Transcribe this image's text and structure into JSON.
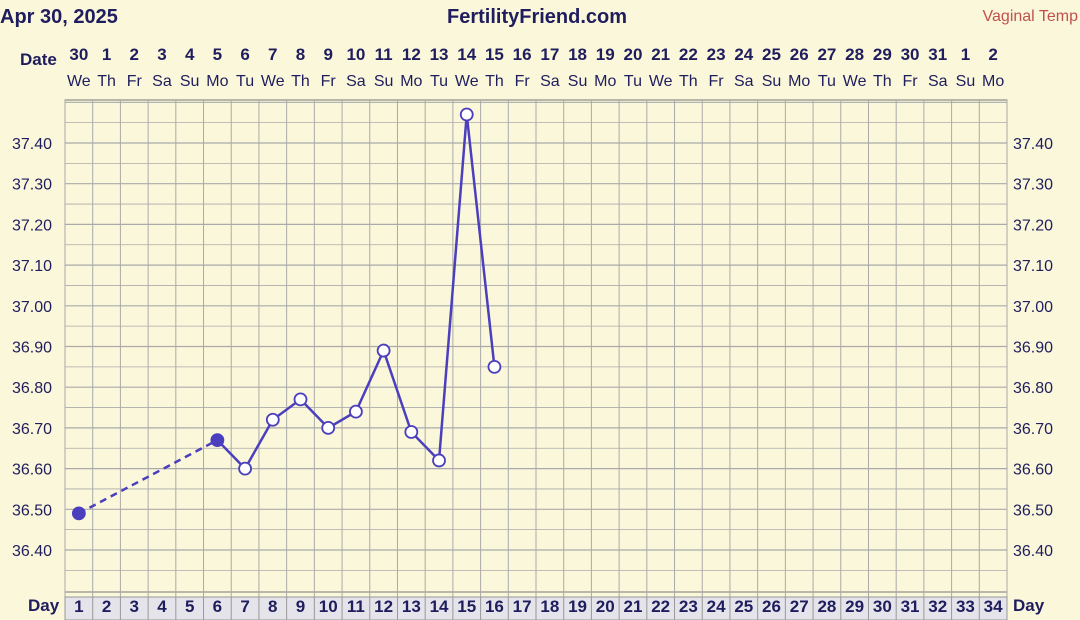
{
  "header": {
    "date": "Apr 30, 2025",
    "site": "FertilityFriend.com",
    "legend": "Vaginal Temp"
  },
  "labels": {
    "date_row": "Date",
    "day_row": "Day"
  },
  "colors": {
    "background": "#fbf7da",
    "grid": "#aaaaaa",
    "line": "#4b3fbe",
    "text": "#1f1d5e",
    "legend": "#c0504d",
    "day_strip": "#e4e4ea"
  },
  "chart_data": {
    "type": "line",
    "dates": [
      "30",
      "1",
      "2",
      "3",
      "4",
      "5",
      "6",
      "7",
      "8",
      "9",
      "10",
      "11",
      "12",
      "13",
      "14",
      "15",
      "16",
      "17",
      "18",
      "19",
      "20",
      "21",
      "22",
      "23",
      "24",
      "25",
      "26",
      "27",
      "28",
      "29",
      "30",
      "31",
      "1",
      "2"
    ],
    "weekdays": [
      "We",
      "Th",
      "Fr",
      "Sa",
      "Su",
      "Mo",
      "Tu",
      "We",
      "Th",
      "Fr",
      "Sa",
      "Su",
      "Mo",
      "Tu",
      "We",
      "Th",
      "Fr",
      "Sa",
      "Su",
      "Mo",
      "Tu",
      "We",
      "Th",
      "Fr",
      "Sa",
      "Su",
      "Mo",
      "Tu",
      "We",
      "Th",
      "Fr",
      "Sa",
      "Su",
      "Mo"
    ],
    "cycle_days": [
      1,
      2,
      3,
      4,
      5,
      6,
      7,
      8,
      9,
      10,
      11,
      12,
      13,
      14,
      15,
      16,
      17,
      18,
      19,
      20,
      21,
      22,
      23,
      24,
      25,
      26,
      27,
      28,
      29,
      30,
      31,
      32,
      33,
      34
    ],
    "y_ticks": [
      "37.40",
      "37.30",
      "37.20",
      "37.10",
      "37.00",
      "36.90",
      "36.80",
      "36.70",
      "36.60",
      "36.50",
      "36.40"
    ],
    "ylim": [
      36.34,
      37.55
    ],
    "points": [
      {
        "day": 1,
        "temp": 36.49,
        "filled": true
      },
      {
        "day": 6,
        "temp": 36.67,
        "filled": true
      },
      {
        "day": 7,
        "temp": 36.6,
        "filled": false
      },
      {
        "day": 8,
        "temp": 36.72,
        "filled": false
      },
      {
        "day": 9,
        "temp": 36.77,
        "filled": false
      },
      {
        "day": 10,
        "temp": 36.7,
        "filled": false
      },
      {
        "day": 11,
        "temp": 36.74,
        "filled": false
      },
      {
        "day": 12,
        "temp": 36.89,
        "filled": false
      },
      {
        "day": 13,
        "temp": 36.69,
        "filled": false
      },
      {
        "day": 14,
        "temp": 36.62,
        "filled": false
      },
      {
        "day": 15,
        "temp": 37.47,
        "filled": false
      },
      {
        "day": 16,
        "temp": 36.85,
        "filled": false
      }
    ],
    "dashed_segments": [
      [
        1,
        6
      ]
    ],
    "grid": true
  }
}
